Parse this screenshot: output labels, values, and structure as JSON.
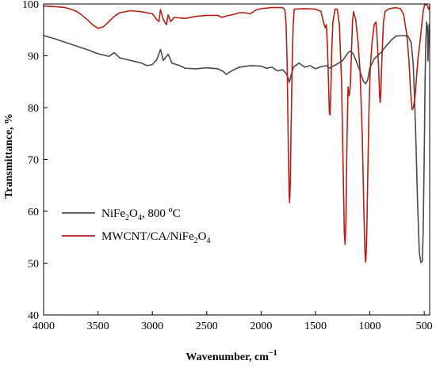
{
  "chart_data": {
    "type": "line",
    "xlabel": "Wavenumber, cm",
    "xlabel_sup": "−1",
    "ylabel": "Transmittance, %",
    "xlim": [
      4000,
      450
    ],
    "ylim": [
      40,
      100
    ],
    "x_reversed": true,
    "grid": false,
    "legend_position": "middle-left",
    "x_ticks": [
      4000,
      3500,
      3000,
      2500,
      2000,
      1500,
      1000,
      500
    ],
    "y_ticks": [
      40,
      50,
      60,
      70,
      80,
      90,
      100
    ],
    "series": [
      {
        "name_parts": [
          "NiFe",
          "2",
          "O",
          "4",
          ", 800 ",
          "o",
          "C"
        ],
        "color": "#4a4a4a",
        "points": [
          [
            4000,
            93.9
          ],
          [
            3900,
            93.3
          ],
          [
            3800,
            92.6
          ],
          [
            3700,
            91.9
          ],
          [
            3600,
            91.2
          ],
          [
            3500,
            90.4
          ],
          [
            3400,
            89.9
          ],
          [
            3350,
            90.6
          ],
          [
            3300,
            89.6
          ],
          [
            3200,
            89.1
          ],
          [
            3100,
            88.6
          ],
          [
            3050,
            88.1
          ],
          [
            3000,
            88.3
          ],
          [
            2960,
            89.2
          ],
          [
            2925,
            91.2
          ],
          [
            2900,
            89.1
          ],
          [
            2855,
            90.3
          ],
          [
            2820,
            88.6
          ],
          [
            2750,
            88.1
          ],
          [
            2700,
            87.6
          ],
          [
            2600,
            87.5
          ],
          [
            2500,
            87.7
          ],
          [
            2400,
            87.5
          ],
          [
            2350,
            87.0
          ],
          [
            2320,
            86.4
          ],
          [
            2280,
            87.0
          ],
          [
            2200,
            87.8
          ],
          [
            2100,
            88.1
          ],
          [
            2000,
            88.0
          ],
          [
            1950,
            87.6
          ],
          [
            1900,
            87.8
          ],
          [
            1850,
            87.1
          ],
          [
            1800,
            87.3
          ],
          [
            1760,
            86.3
          ],
          [
            1740,
            84.9
          ],
          [
            1720,
            86.6
          ],
          [
            1700,
            87.9
          ],
          [
            1650,
            88.6
          ],
          [
            1600,
            87.8
          ],
          [
            1550,
            88.1
          ],
          [
            1500,
            87.5
          ],
          [
            1450,
            87.9
          ],
          [
            1400,
            88.1
          ],
          [
            1370,
            87.6
          ],
          [
            1340,
            88.0
          ],
          [
            1300,
            88.4
          ],
          [
            1250,
            89.1
          ],
          [
            1200,
            90.6
          ],
          [
            1180,
            90.9
          ],
          [
            1150,
            90.3
          ],
          [
            1100,
            87.6
          ],
          [
            1060,
            85.1
          ],
          [
            1040,
            84.6
          ],
          [
            1020,
            85.3
          ],
          [
            1000,
            87.6
          ],
          [
            960,
            89.4
          ],
          [
            900,
            90.6
          ],
          [
            850,
            91.9
          ],
          [
            800,
            93.1
          ],
          [
            760,
            93.8
          ],
          [
            720,
            93.9
          ],
          [
            680,
            93.9
          ],
          [
            650,
            93.8
          ],
          [
            620,
            92.6
          ],
          [
            600,
            88.1
          ],
          [
            580,
            76.0
          ],
          [
            560,
            61.0
          ],
          [
            545,
            52.0
          ],
          [
            530,
            50.1
          ],
          [
            518,
            50.3
          ],
          [
            510,
            56.0
          ],
          [
            500,
            70.0
          ],
          [
            492,
            85.0
          ],
          [
            485,
            93.0
          ],
          [
            478,
            96.5
          ],
          [
            470,
            95.5
          ],
          [
            465,
            89.0
          ],
          [
            460,
            92.0
          ],
          [
            455,
            96.0
          ],
          [
            450,
            94.5
          ]
        ]
      },
      {
        "name_parts": [
          "MWCNT/CA/NiFe",
          "2",
          "O",
          "4"
        ],
        "color": "#b32016",
        "points": [
          [
            4000,
            99.6
          ],
          [
            3900,
            99.5
          ],
          [
            3800,
            99.3
          ],
          [
            3750,
            99.0
          ],
          [
            3700,
            98.6
          ],
          [
            3650,
            97.9
          ],
          [
            3600,
            97.0
          ],
          [
            3550,
            96.0
          ],
          [
            3500,
            95.3
          ],
          [
            3450,
            95.6
          ],
          [
            3400,
            96.6
          ],
          [
            3350,
            97.6
          ],
          [
            3300,
            98.3
          ],
          [
            3200,
            98.7
          ],
          [
            3100,
            98.5
          ],
          [
            3000,
            98.1
          ],
          [
            2960,
            97.0
          ],
          [
            2940,
            96.6
          ],
          [
            2925,
            98.9
          ],
          [
            2900,
            97.0
          ],
          [
            2870,
            96.0
          ],
          [
            2855,
            97.9
          ],
          [
            2830,
            96.6
          ],
          [
            2800,
            97.4
          ],
          [
            2700,
            97.2
          ],
          [
            2600,
            97.6
          ],
          [
            2500,
            97.8
          ],
          [
            2400,
            97.8
          ],
          [
            2360,
            97.4
          ],
          [
            2320,
            97.7
          ],
          [
            2250,
            98.0
          ],
          [
            2200,
            98.3
          ],
          [
            2150,
            98.3
          ],
          [
            2100,
            98.1
          ],
          [
            2050,
            98.8
          ],
          [
            2000,
            99.1
          ],
          [
            1900,
            99.3
          ],
          [
            1850,
            99.3
          ],
          [
            1800,
            99.3
          ],
          [
            1780,
            98.8
          ],
          [
            1770,
            96.0
          ],
          [
            1760,
            88.0
          ],
          [
            1750,
            72.0
          ],
          [
            1742,
            63.0
          ],
          [
            1738,
            61.7
          ],
          [
            1732,
            65.0
          ],
          [
            1725,
            75.0
          ],
          [
            1715,
            88.0
          ],
          [
            1705,
            96.0
          ],
          [
            1695,
            99.0
          ],
          [
            1600,
            99.1
          ],
          [
            1500,
            99.0
          ],
          [
            1450,
            98.6
          ],
          [
            1420,
            96.0
          ],
          [
            1410,
            95.4
          ],
          [
            1400,
            96.0
          ],
          [
            1390,
            92.0
          ],
          [
            1380,
            85.0
          ],
          [
            1372,
            79.0
          ],
          [
            1366,
            78.6
          ],
          [
            1360,
            82.0
          ],
          [
            1350,
            91.0
          ],
          [
            1340,
            96.5
          ],
          [
            1320,
            99.0
          ],
          [
            1300,
            99.0
          ],
          [
            1280,
            96.0
          ],
          [
            1260,
            85.0
          ],
          [
            1245,
            68.0
          ],
          [
            1235,
            56.0
          ],
          [
            1228,
            53.6
          ],
          [
            1220,
            58.0
          ],
          [
            1210,
            74.0
          ],
          [
            1200,
            84.0
          ],
          [
            1190,
            82.3
          ],
          [
            1180,
            84.0
          ],
          [
            1170,
            90.0
          ],
          [
            1160,
            96.5
          ],
          [
            1150,
            98.5
          ],
          [
            1130,
            97.0
          ],
          [
            1110,
            93.0
          ],
          [
            1090,
            87.0
          ],
          [
            1070,
            75.0
          ],
          [
            1055,
            60.0
          ],
          [
            1045,
            52.0
          ],
          [
            1040,
            50.2
          ],
          [
            1035,
            51.0
          ],
          [
            1028,
            56.0
          ],
          [
            1020,
            66.0
          ],
          [
            1008,
            80.0
          ],
          [
            995,
            88.0
          ],
          [
            980,
            92.5
          ],
          [
            960,
            96.0
          ],
          [
            945,
            96.5
          ],
          [
            935,
            94.0
          ],
          [
            920,
            88.0
          ],
          [
            910,
            82.0
          ],
          [
            905,
            81.0
          ],
          [
            898,
            83.5
          ],
          [
            888,
            90.0
          ],
          [
            875,
            96.5
          ],
          [
            860,
            98.6
          ],
          [
            820,
            99.1
          ],
          [
            760,
            99.3
          ],
          [
            720,
            99.1
          ],
          [
            690,
            98.0
          ],
          [
            660,
            94.0
          ],
          [
            640,
            89.0
          ],
          [
            625,
            83.0
          ],
          [
            612,
            79.6
          ],
          [
            600,
            80.0
          ],
          [
            585,
            82.0
          ],
          [
            570,
            86.0
          ],
          [
            555,
            90.0
          ],
          [
            540,
            92.5
          ],
          [
            525,
            95.5
          ],
          [
            510,
            98.5
          ],
          [
            495,
            100.0
          ],
          [
            480,
            99.8
          ],
          [
            470,
            99.6
          ],
          [
            460,
            99.0
          ],
          [
            450,
            99.6
          ]
        ]
      }
    ]
  }
}
